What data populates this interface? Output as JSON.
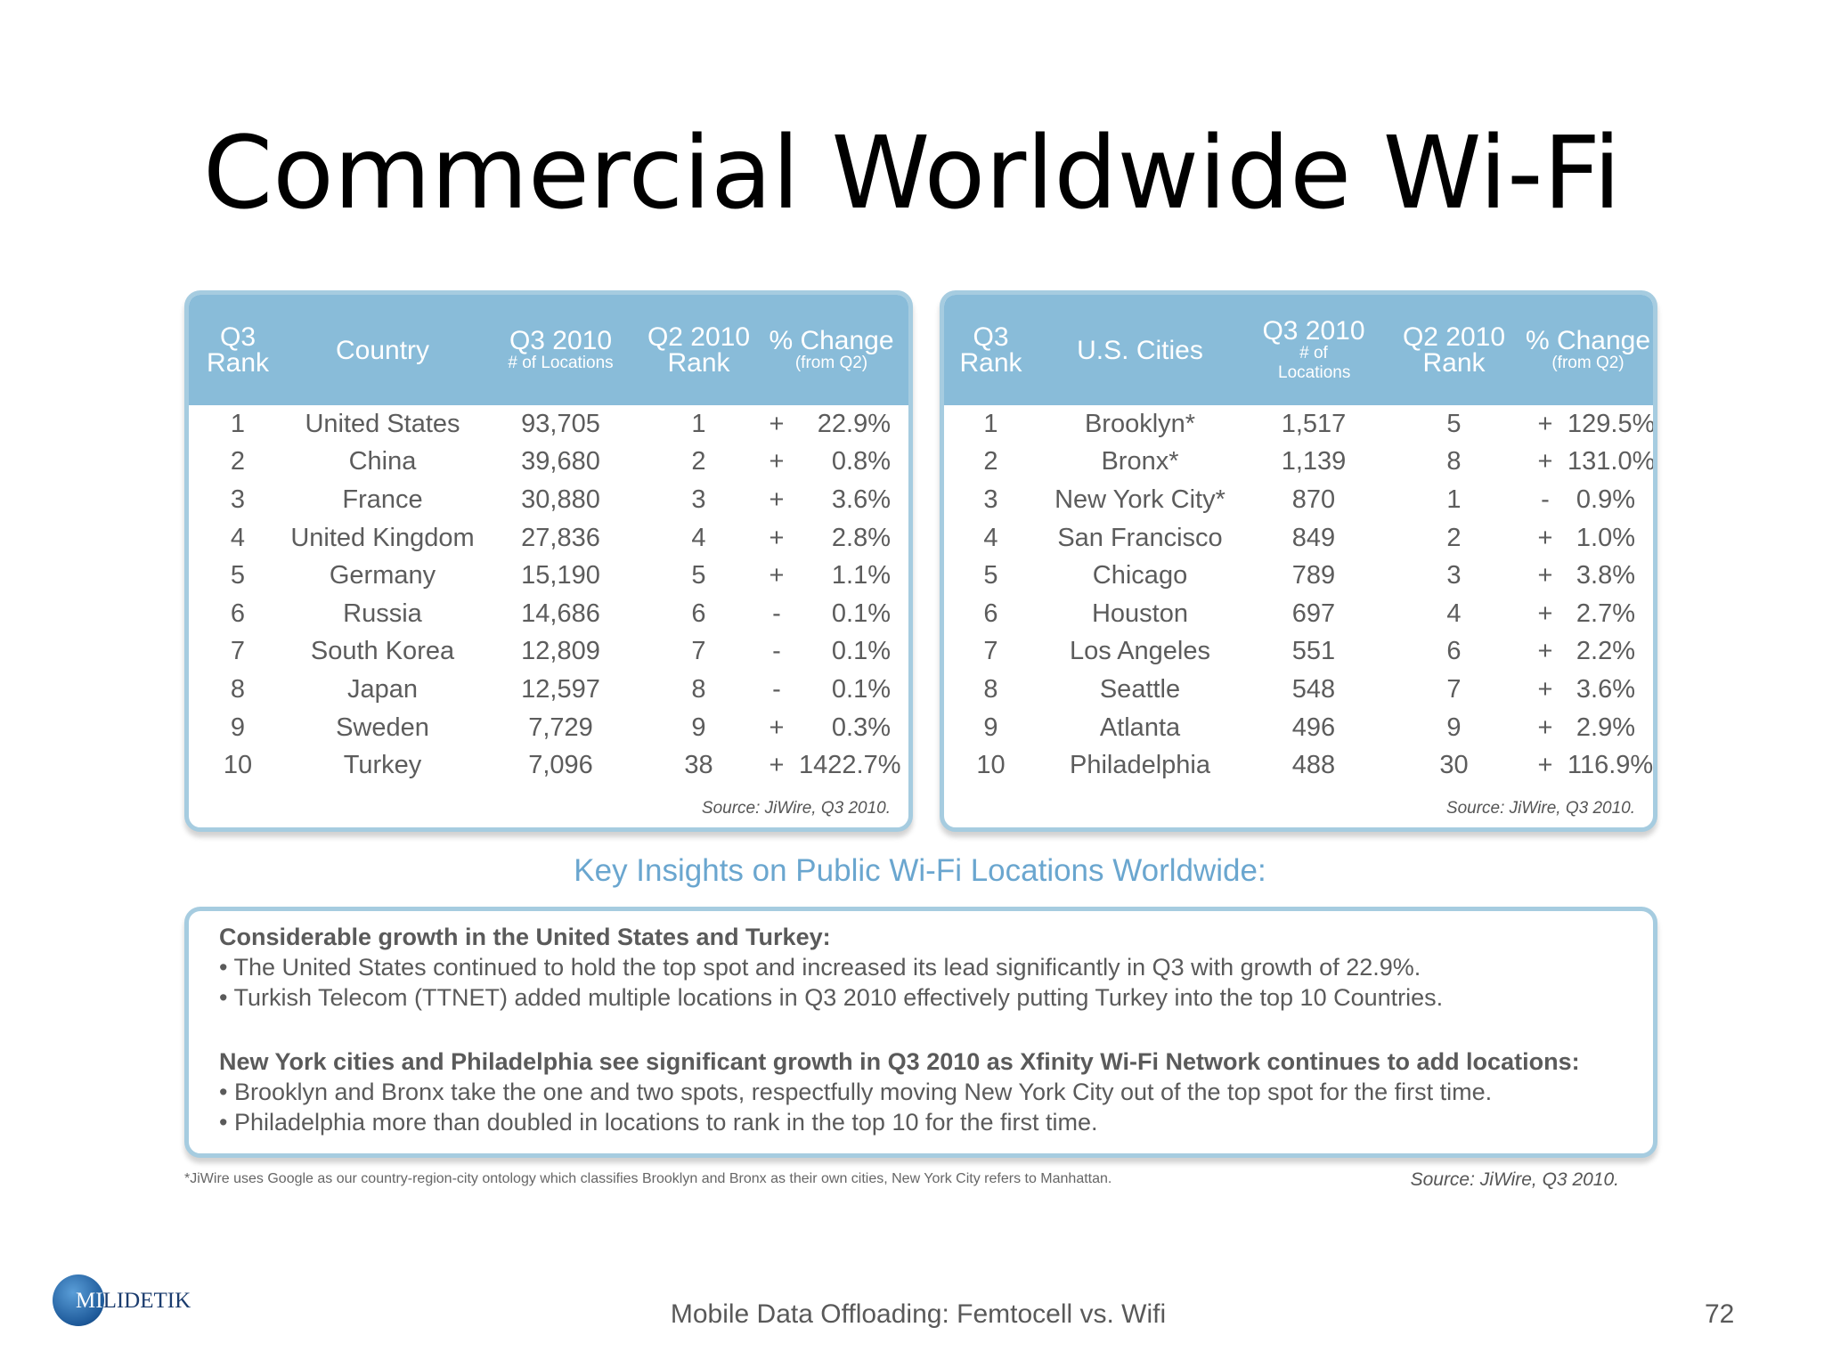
{
  "title": "Commercial Worldwide Wi-Fi",
  "left_table": {
    "headers": {
      "rank": "Q3 Rank",
      "name": "Country",
      "q3": "Q3 2010",
      "q3_sub": "# of Locations",
      "q2": "Q2 2010 Rank",
      "change": "% Change",
      "change_sub": "(from Q2)"
    },
    "rows": [
      {
        "rank": "1",
        "name": "United States",
        "loc": "93,705",
        "q2": "1",
        "sign": "+",
        "pct": "22.9%"
      },
      {
        "rank": "2",
        "name": "China",
        "loc": "39,680",
        "q2": "2",
        "sign": "+",
        "pct": "0.8%"
      },
      {
        "rank": "3",
        "name": "France",
        "loc": "30,880",
        "q2": "3",
        "sign": "+",
        "pct": "3.6%"
      },
      {
        "rank": "4",
        "name": "United Kingdom",
        "loc": "27,836",
        "q2": "4",
        "sign": "+",
        "pct": "2.8%"
      },
      {
        "rank": "5",
        "name": "Germany",
        "loc": "15,190",
        "q2": "5",
        "sign": "+",
        "pct": "1.1%"
      },
      {
        "rank": "6",
        "name": "Russia",
        "loc": "14,686",
        "q2": "6",
        "sign": "-",
        "pct": "0.1%"
      },
      {
        "rank": "7",
        "name": "South Korea",
        "loc": "12,809",
        "q2": "7",
        "sign": "-",
        "pct": "0.1%"
      },
      {
        "rank": "8",
        "name": "Japan",
        "loc": "12,597",
        "q2": "8",
        "sign": "-",
        "pct": "0.1%"
      },
      {
        "rank": "9",
        "name": "Sweden",
        "loc": "7,729",
        "q2": "9",
        "sign": "+",
        "pct": "0.3%"
      },
      {
        "rank": "10",
        "name": "Turkey",
        "loc": "7,096",
        "q2": "38",
        "sign": "+",
        "pct": "1422.7%"
      }
    ],
    "source": "Source: JiWire, Q3 2010."
  },
  "right_table": {
    "headers": {
      "rank": "Q3 Rank",
      "name": "U.S. Cities",
      "q3": "Q3 2010",
      "q3_sub": "# of Locations",
      "q2": "Q2 2010 Rank",
      "change": "% Change",
      "change_sub": "(from Q2)"
    },
    "rows": [
      {
        "rank": "1",
        "name": "Brooklyn*",
        "loc": "1,517",
        "q2": "5",
        "sign": "+",
        "pct": "129.5%"
      },
      {
        "rank": "2",
        "name": "Bronx*",
        "loc": "1,139",
        "q2": "8",
        "sign": "+",
        "pct": "131.0%"
      },
      {
        "rank": "3",
        "name": "New York City*",
        "loc": "870",
        "q2": "1",
        "sign": "-",
        "pct": "0.9%"
      },
      {
        "rank": "4",
        "name": "San Francisco",
        "loc": "849",
        "q2": "2",
        "sign": "+",
        "pct": "1.0%"
      },
      {
        "rank": "5",
        "name": "Chicago",
        "loc": "789",
        "q2": "3",
        "sign": "+",
        "pct": "3.8%"
      },
      {
        "rank": "6",
        "name": "Houston",
        "loc": "697",
        "q2": "4",
        "sign": "+",
        "pct": "2.7%"
      },
      {
        "rank": "7",
        "name": "Los Angeles",
        "loc": "551",
        "q2": "6",
        "sign": "+",
        "pct": "2.2%"
      },
      {
        "rank": "8",
        "name": "Seattle",
        "loc": "548",
        "q2": "7",
        "sign": "+",
        "pct": "3.6%"
      },
      {
        "rank": "9",
        "name": "Atlanta",
        "loc": "496",
        "q2": "9",
        "sign": "+",
        "pct": "2.9%"
      },
      {
        "rank": "10",
        "name": "Philadelphia",
        "loc": "488",
        "q2": "30",
        "sign": "+",
        "pct": "116.9%"
      }
    ],
    "source": "Source: JiWire, Q3 2010."
  },
  "insights": {
    "heading": "Key Insights on Public Wi-Fi Locations Worldwide:",
    "section1_title": "Considerable growth in the United States and Turkey:",
    "section1_bullets": [
      "• The United States continued to hold the top spot and increased its lead significantly in Q3 with growth of 22.9%.",
      "• Turkish Telecom (TTNET) added multiple locations in Q3 2010 effectively putting Turkey into the top 10 Countries."
    ],
    "section2_title": "New York cities and Philadelphia see significant growth in Q3 2010 as Xfinity Wi-Fi Network continues to add locations:",
    "section2_bullets": [
      "• Brooklyn and Bronx take the one and two spots, respectfully moving New York City out of the top spot for the first time.",
      "• Philadelphia more than doubled in locations to rank in the top 10 for the first time."
    ]
  },
  "footnote": "*JiWire uses Google as our country-region-city ontology which classifies Brooklyn and Bronx as their own cities, New York City refers to Manhattan.",
  "source_bottom": "Source: JiWire, Q3 2010.",
  "logo": {
    "part1": "MI",
    "part2": "LIDETIK"
  },
  "footer": "Mobile Data Offloading: Femtocell vs. Wifi",
  "page_number": "72"
}
